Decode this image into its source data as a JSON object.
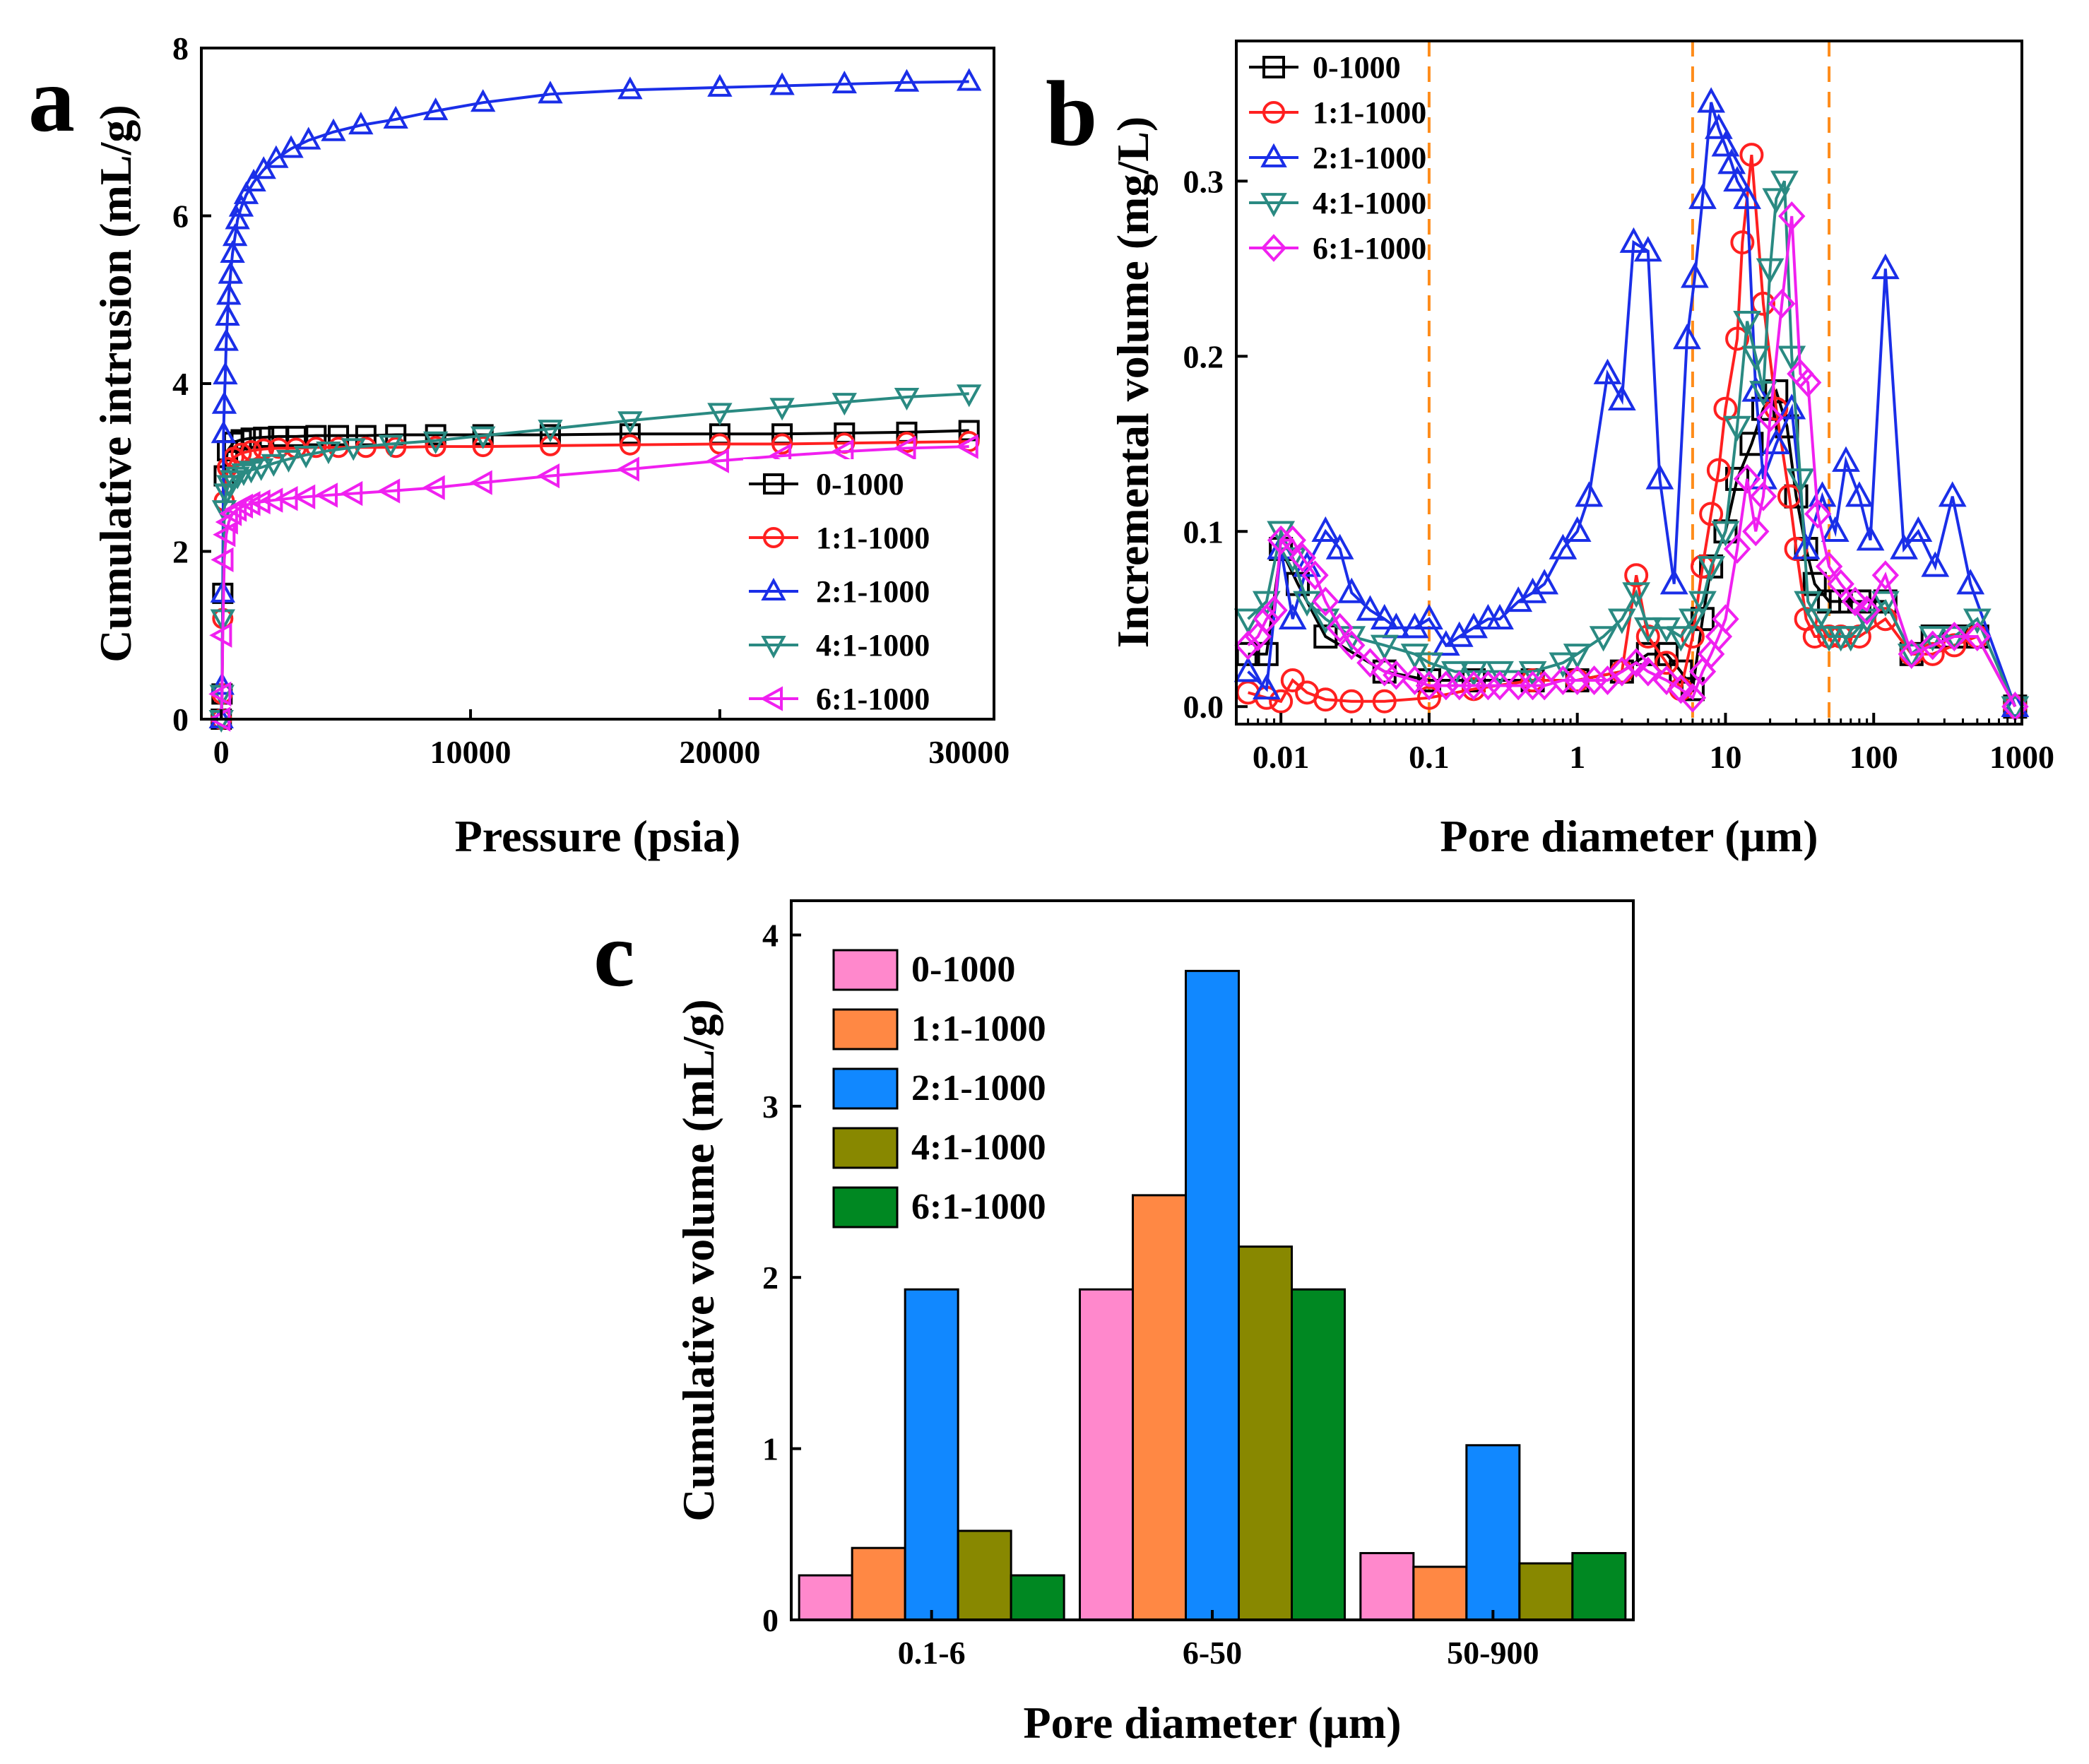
{
  "chart_data": [
    {
      "panel": "a",
      "type": "line",
      "xlabel": "Pressure (psia)",
      "ylabel": "Cumulative intrusion (mL/g)",
      "xlim": [
        -800,
        31000
      ],
      "ylim": [
        0,
        8
      ],
      "xticks": [
        0,
        10000,
        20000,
        30000
      ],
      "xtick_labels": [
        "0",
        "10000",
        "20000",
        "30000"
      ],
      "yticks": [
        0,
        2,
        4,
        6,
        8
      ],
      "ytick_labels": [
        "0",
        "2",
        "4",
        "6",
        "8"
      ],
      "legend_position": "bottom-right",
      "series": [
        {
          "name": "0-1000",
          "color": "#000000",
          "marker": "square",
          "x": [
            0,
            30,
            60,
            120,
            250,
            500,
            800,
            1200,
            1700,
            2300,
            3000,
            3800,
            4700,
            5800,
            7000,
            8600,
            10500,
            13200,
            16400,
            20000,
            22500,
            25000,
            27500,
            30000
          ],
          "y": [
            0,
            0.3,
            1.5,
            2.9,
            3.2,
            3.3,
            3.33,
            3.35,
            3.36,
            3.37,
            3.37,
            3.38,
            3.38,
            3.38,
            3.39,
            3.39,
            3.39,
            3.39,
            3.4,
            3.4,
            3.4,
            3.41,
            3.42,
            3.44
          ]
        },
        {
          "name": "1:1-1000",
          "color": "#ff2020",
          "marker": "circle",
          "x": [
            0,
            30,
            60,
            120,
            250,
            500,
            800,
            1200,
            1700,
            2300,
            3000,
            3800,
            4700,
            5800,
            7000,
            8600,
            10500,
            13200,
            16400,
            20000,
            22500,
            25000,
            27500,
            30000
          ],
          "y": [
            0,
            0.3,
            1.2,
            2.6,
            3.0,
            3.12,
            3.17,
            3.2,
            3.22,
            3.23,
            3.23,
            3.24,
            3.24,
            3.24,
            3.24,
            3.25,
            3.25,
            3.26,
            3.27,
            3.28,
            3.28,
            3.29,
            3.3,
            3.31
          ]
        },
        {
          "name": "2:1-1000",
          "color": "#1a2ee8",
          "marker": "triangle-up",
          "x": [
            0,
            30,
            60,
            90,
            120,
            160,
            200,
            250,
            300,
            370,
            450,
            550,
            650,
            800,
            1000,
            1300,
            1700,
            2200,
            2800,
            3500,
            4500,
            5600,
            7000,
            8600,
            10500,
            13200,
            16400,
            20000,
            22500,
            25000,
            27500,
            30000
          ],
          "y": [
            0,
            0.4,
            1.5,
            3.4,
            3.75,
            4.1,
            4.5,
            4.8,
            5.05,
            5.3,
            5.55,
            5.75,
            5.95,
            6.1,
            6.25,
            6.4,
            6.55,
            6.68,
            6.8,
            6.9,
            7.0,
            7.08,
            7.15,
            7.25,
            7.35,
            7.45,
            7.5,
            7.53,
            7.55,
            7.57,
            7.59,
            7.6
          ]
        },
        {
          "name": "4:1-1000",
          "color": "#2a8a82",
          "marker": "triangle-down",
          "x": [
            0,
            30,
            60,
            120,
            200,
            300,
            450,
            650,
            900,
            1200,
            1600,
            2100,
            2700,
            3400,
            4300,
            5300,
            6800,
            8600,
            10500,
            13200,
            16400,
            20000,
            22500,
            25000,
            27500,
            30000
          ],
          "y": [
            0,
            0.3,
            1.2,
            2.5,
            2.7,
            2.8,
            2.86,
            2.9,
            2.94,
            2.97,
            3.0,
            3.05,
            3.1,
            3.15,
            3.2,
            3.24,
            3.28,
            3.32,
            3.38,
            3.46,
            3.56,
            3.66,
            3.72,
            3.78,
            3.84,
            3.88
          ]
        },
        {
          "name": "6:1-1000",
          "color": "#f020f0",
          "marker": "triangle-left",
          "x": [
            0,
            30,
            60,
            120,
            200,
            300,
            450,
            650,
            900,
            1200,
            1600,
            2100,
            2700,
            3400,
            4300,
            5300,
            6800,
            8600,
            10500,
            13200,
            16400,
            20000,
            22500,
            25000,
            27500,
            30000
          ],
          "y": [
            0,
            0.3,
            1.0,
            1.9,
            2.2,
            2.35,
            2.45,
            2.5,
            2.54,
            2.57,
            2.59,
            2.61,
            2.63,
            2.65,
            2.67,
            2.69,
            2.72,
            2.76,
            2.82,
            2.9,
            2.98,
            3.08,
            3.14,
            3.19,
            3.23,
            3.25
          ]
        }
      ]
    },
    {
      "panel": "b",
      "type": "line",
      "xscale": "log",
      "xlabel": "Pore diameter (μm)",
      "ylabel": "Incremental volume (mg/L)",
      "xlim": [
        0.005,
        1000
      ],
      "ylim": [
        -0.01,
        0.38
      ],
      "xticks": [
        0.01,
        0.1,
        1,
        10,
        100,
        1000
      ],
      "xtick_labels": [
        "0.01",
        "0.1",
        "1",
        "10",
        "100",
        "1000"
      ],
      "yticks": [
        0.0,
        0.1,
        0.2,
        0.3
      ],
      "ytick_labels": [
        "0.0",
        "0.1",
        "0.2",
        "0.3"
      ],
      "reference_lines_x": [
        0.1,
        6,
        50
      ],
      "legend_position": "top-left",
      "series": [
        {
          "name": "0-1000",
          "color": "#000000",
          "marker": "square",
          "x": [
            0.006,
            0.008,
            0.01,
            0.013,
            0.02,
            0.05,
            0.1,
            0.2,
            0.5,
            1,
            2,
            3,
            4,
            5,
            6,
            7,
            8,
            10,
            12,
            15,
            18,
            22,
            26,
            30,
            35,
            40,
            50,
            60,
            80,
            120,
            180,
            250,
            350,
            500,
            900
          ],
          "y": [
            0.03,
            0.03,
            0.09,
            0.07,
            0.04,
            0.02,
            0.015,
            0.015,
            0.015,
            0.015,
            0.02,
            0.03,
            0.03,
            0.02,
            0.01,
            0.05,
            0.08,
            0.1,
            0.13,
            0.15,
            0.17,
            0.18,
            0.16,
            0.12,
            0.09,
            0.07,
            0.06,
            0.06,
            0.06,
            0.06,
            0.03,
            0.04,
            0.04,
            0.04,
            0.0
          ]
        },
        {
          "name": "1:1-1000",
          "color": "#ff2020",
          "marker": "circle",
          "x": [
            0.006,
            0.008,
            0.01,
            0.012,
            0.015,
            0.02,
            0.03,
            0.05,
            0.1,
            0.2,
            0.5,
            1,
            2,
            2.5,
            3,
            4,
            5,
            6,
            7,
            8,
            9,
            10,
            12,
            13,
            15,
            18,
            22,
            27,
            30,
            35,
            40,
            50,
            60,
            80,
            120,
            180,
            250,
            350,
            500,
            900
          ],
          "y": [
            0.008,
            0.005,
            0.003,
            0.015,
            0.008,
            0.004,
            0.003,
            0.003,
            0.005,
            0.01,
            0.015,
            0.015,
            0.02,
            0.075,
            0.04,
            0.025,
            0.01,
            0.04,
            0.08,
            0.11,
            0.135,
            0.17,
            0.21,
            0.265,
            0.315,
            0.23,
            0.17,
            0.12,
            0.09,
            0.05,
            0.04,
            0.04,
            0.04,
            0.04,
            0.05,
            0.03,
            0.03,
            0.035,
            0.04,
            0.0
          ]
        },
        {
          "name": "2:1-1000",
          "color": "#1a2ee8",
          "marker": "triangle-up",
          "x": [
            0.006,
            0.008,
            0.01,
            0.012,
            0.015,
            0.02,
            0.025,
            0.03,
            0.04,
            0.05,
            0.06,
            0.08,
            0.1,
            0.13,
            0.16,
            0.2,
            0.25,
            0.3,
            0.4,
            0.5,
            0.6,
            0.8,
            1,
            1.2,
            1.6,
            2,
            2.4,
            3,
            3.6,
            4.5,
            5.5,
            6.2,
            7,
            8,
            9,
            10,
            11,
            12,
            14,
            16,
            18,
            22,
            28,
            35,
            45,
            55,
            65,
            80,
            95,
            120,
            160,
            200,
            260,
            340,
            450,
            900
          ],
          "y": [
            0.02,
            0.01,
            0.09,
            0.05,
            0.08,
            0.1,
            0.09,
            0.065,
            0.055,
            0.05,
            0.045,
            0.045,
            0.05,
            0.035,
            0.04,
            0.045,
            0.05,
            0.05,
            0.06,
            0.065,
            0.07,
            0.09,
            0.1,
            0.12,
            0.19,
            0.175,
            0.265,
            0.26,
            0.13,
            0.07,
            0.21,
            0.245,
            0.29,
            0.345,
            0.33,
            0.32,
            0.31,
            0.3,
            0.29,
            0.18,
            0.13,
            0.15,
            0.17,
            0.09,
            0.12,
            0.1,
            0.14,
            0.12,
            0.095,
            0.25,
            0.09,
            0.1,
            0.08,
            0.12,
            0.07,
            0.0
          ]
        },
        {
          "name": "4:1-1000",
          "color": "#2a8a82",
          "marker": "triangle-down",
          "x": [
            0.006,
            0.008,
            0.01,
            0.012,
            0.015,
            0.02,
            0.03,
            0.05,
            0.08,
            0.1,
            0.15,
            0.2,
            0.3,
            0.5,
            0.8,
            1,
            1.5,
            2,
            2.5,
            3,
            4,
            5,
            6,
            7,
            8,
            10,
            12,
            14,
            16,
            18,
            20,
            22,
            25,
            28,
            32,
            36,
            42,
            50,
            60,
            70,
            90,
            120,
            180,
            250,
            350,
            500,
            900
          ],
          "y": [
            0.05,
            0.06,
            0.1,
            0.085,
            0.06,
            0.05,
            0.04,
            0.035,
            0.03,
            0.025,
            0.02,
            0.02,
            0.02,
            0.02,
            0.025,
            0.03,
            0.04,
            0.05,
            0.065,
            0.045,
            0.045,
            0.04,
            0.05,
            0.06,
            0.08,
            0.1,
            0.16,
            0.22,
            0.2,
            0.18,
            0.25,
            0.29,
            0.3,
            0.2,
            0.13,
            0.06,
            0.05,
            0.04,
            0.04,
            0.04,
            0.05,
            0.06,
            0.03,
            0.04,
            0.04,
            0.05,
            0.0
          ]
        },
        {
          "name": "6:1-1000",
          "color": "#f020f0",
          "marker": "diamond",
          "x": [
            0.006,
            0.007,
            0.008,
            0.009,
            0.01,
            0.012,
            0.014,
            0.017,
            0.02,
            0.025,
            0.03,
            0.04,
            0.05,
            0.06,
            0.08,
            0.1,
            0.13,
            0.16,
            0.2,
            0.25,
            0.3,
            0.4,
            0.5,
            0.6,
            0.8,
            1,
            1.3,
            1.6,
            2,
            2.5,
            3,
            4,
            5,
            6,
            7,
            8,
            9,
            10,
            12,
            14,
            16,
            18,
            20,
            24,
            28,
            32,
            36,
            42,
            50,
            60,
            75,
            90,
            120,
            180,
            250,
            350,
            500,
            900
          ],
          "y": [
            0.035,
            0.04,
            0.05,
            0.055,
            0.095,
            0.095,
            0.085,
            0.075,
            0.06,
            0.045,
            0.035,
            0.025,
            0.02,
            0.018,
            0.015,
            0.012,
            0.012,
            0.012,
            0.012,
            0.012,
            0.012,
            0.012,
            0.012,
            0.012,
            0.015,
            0.015,
            0.015,
            0.015,
            0.02,
            0.025,
            0.02,
            0.015,
            0.01,
            0.005,
            0.02,
            0.03,
            0.04,
            0.05,
            0.09,
            0.13,
            0.1,
            0.12,
            0.165,
            0.23,
            0.28,
            0.19,
            0.185,
            0.11,
            0.08,
            0.07,
            0.06,
            0.055,
            0.075,
            0.03,
            0.035,
            0.04,
            0.04,
            0.0
          ]
        }
      ]
    },
    {
      "panel": "c",
      "type": "bar",
      "xlabel": "Pore diameter (μm)",
      "ylabel": "Cumulative volume (mL/g)",
      "categories": [
        "0.1-6",
        "6-50",
        "50-900"
      ],
      "ylim": [
        0,
        4.2
      ],
      "yticks": [
        0,
        1,
        2,
        3,
        4
      ],
      "ytick_labels": [
        "0",
        "1",
        "2",
        "3",
        "4"
      ],
      "legend_position": "top-left",
      "series": [
        {
          "name": "0-1000",
          "color": "#ff88cc",
          "values": [
            0.26,
            1.93,
            0.39
          ]
        },
        {
          "name": "1:1-1000",
          "color": "#ff8844",
          "values": [
            0.42,
            2.48,
            0.31
          ]
        },
        {
          "name": "2:1-1000",
          "color": "#1188ff",
          "values": [
            1.93,
            3.79,
            1.02
          ]
        },
        {
          "name": "4:1-1000",
          "color": "#888800",
          "values": [
            0.52,
            2.18,
            0.33
          ]
        },
        {
          "name": "6:1-1000",
          "color": "#008822",
          "values": [
            0.26,
            1.93,
            0.39
          ]
        }
      ]
    }
  ],
  "panel_labels": [
    "a",
    "b",
    "c"
  ]
}
